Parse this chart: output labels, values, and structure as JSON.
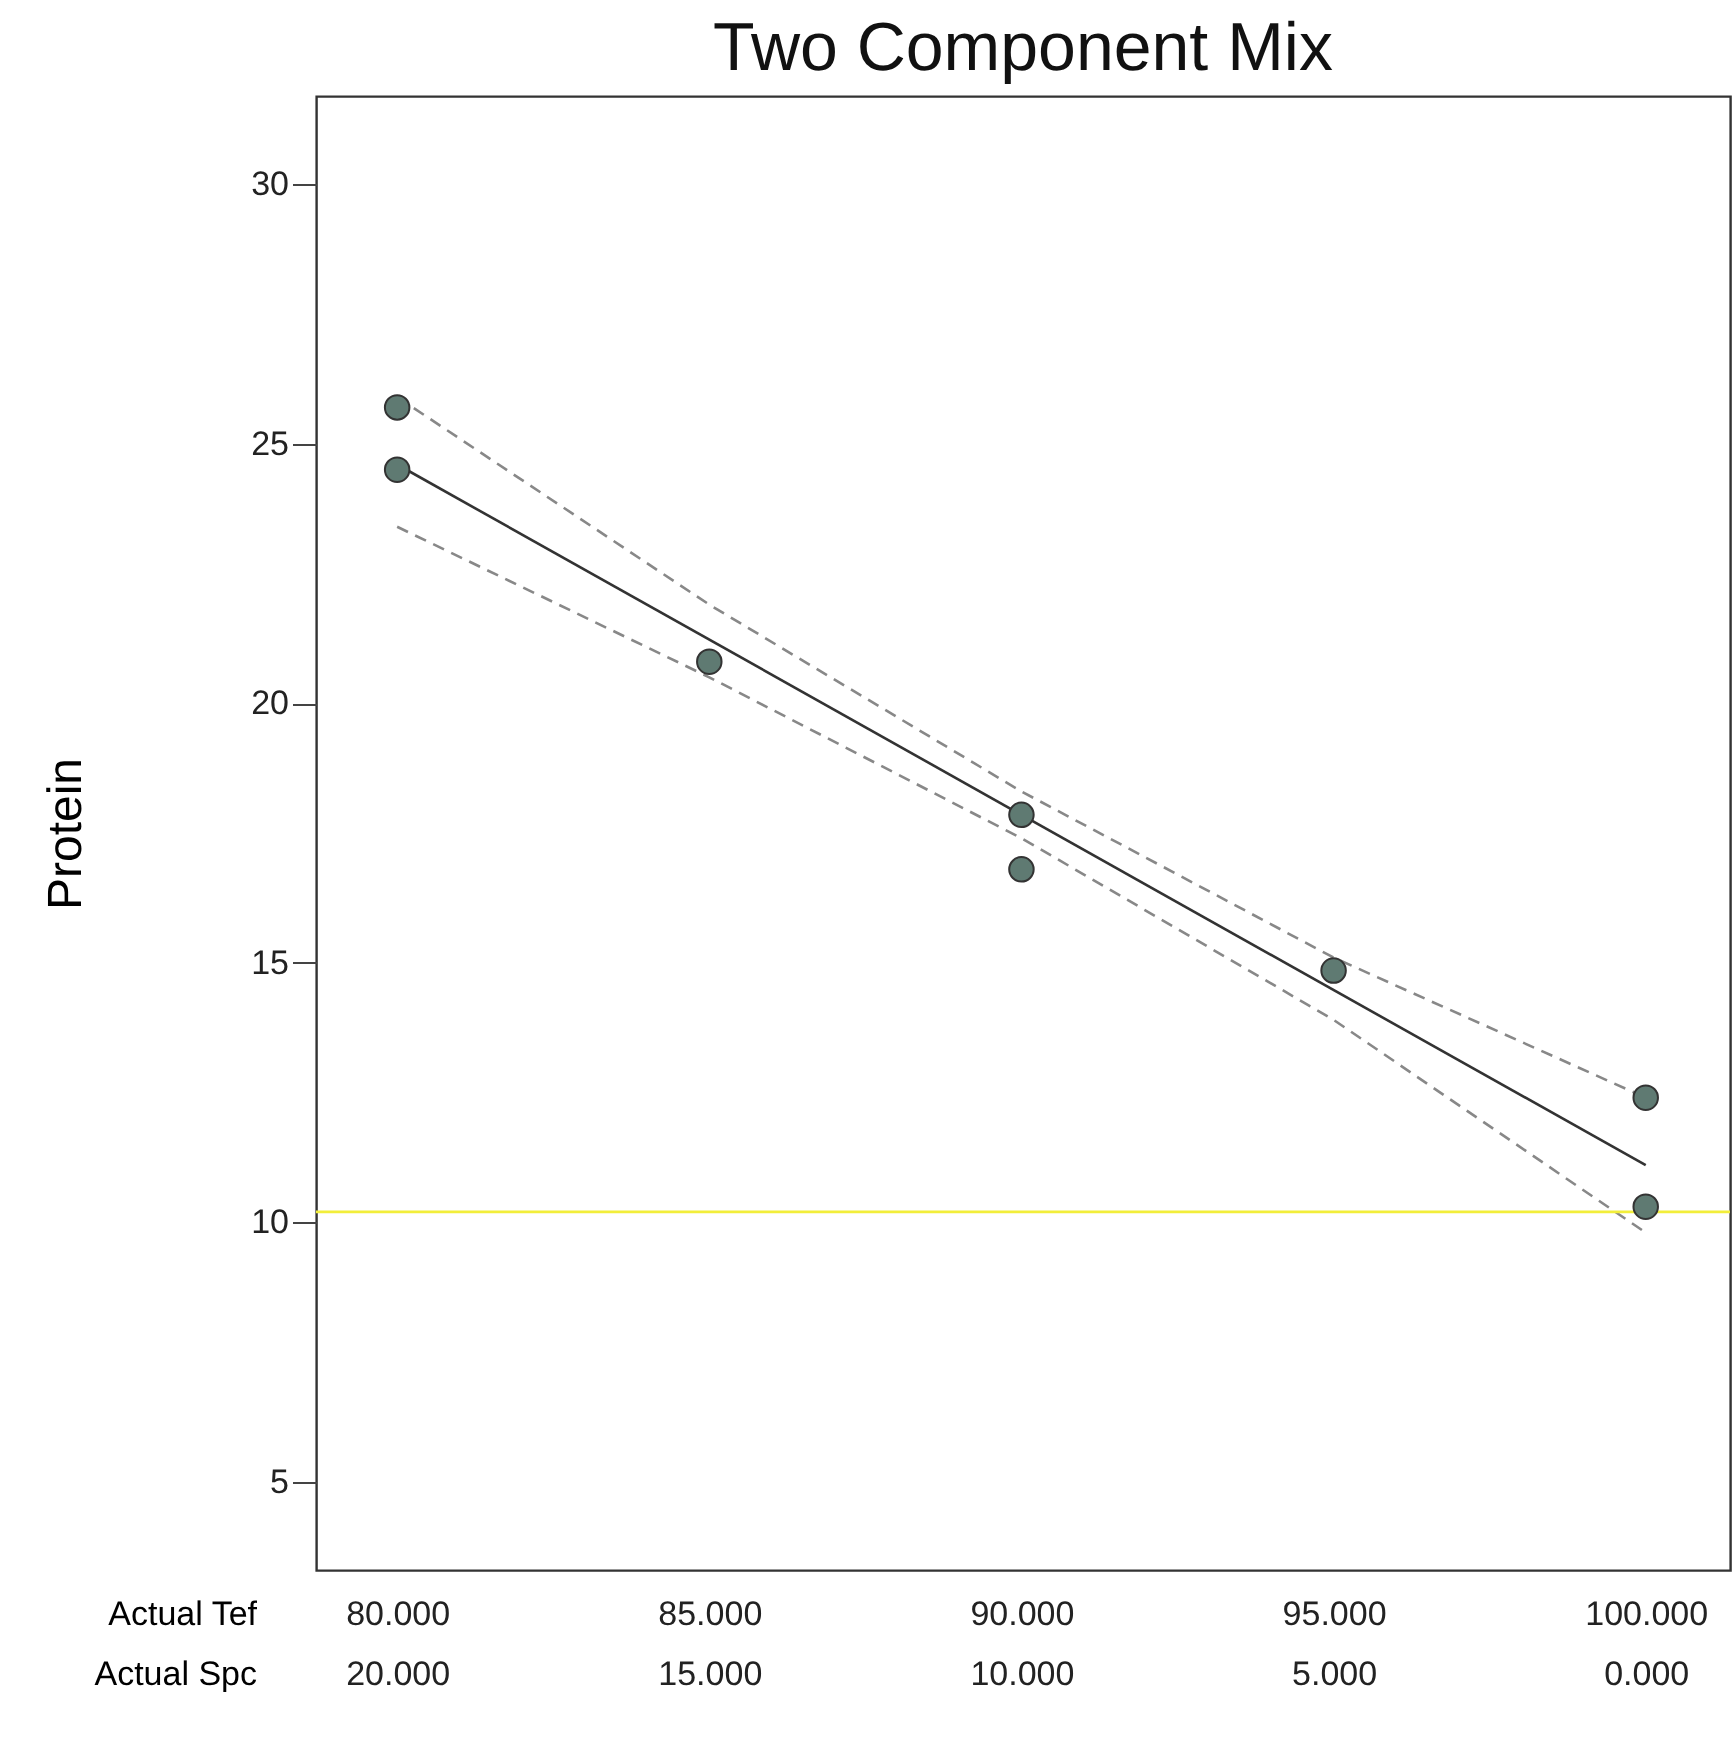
{
  "chart_data": {
    "type": "scatter",
    "title": "Two Component Mix",
    "ylabel": "Protein",
    "xlabel": "Actual Tef",
    "x2label": "Actual Spc",
    "xlim": [
      78.7,
      101.35
    ],
    "xticks": [
      {
        "value": 80,
        "label": "80.000"
      },
      {
        "value": 85,
        "label": "85.000"
      },
      {
        "value": 90,
        "label": "90.000"
      },
      {
        "value": 95,
        "label": "95.000"
      },
      {
        "value": 100,
        "label": "100.000"
      }
    ],
    "x2lim": [
      21.3,
      -1.35
    ],
    "x2ticks": [
      {
        "value": 20,
        "label": "20.000"
      },
      {
        "value": 15,
        "label": "15.000"
      },
      {
        "value": 10,
        "label": "10.000"
      },
      {
        "value": 5,
        "label": "5.000"
      },
      {
        "value": 0,
        "label": "0.000"
      }
    ],
    "ylim": [
      3.3,
      31.7
    ],
    "yticks": [
      5,
      10,
      15,
      20,
      25,
      30
    ],
    "grid": false,
    "series": [
      {
        "color": "#5f7a72",
        "marker": "circle",
        "x": [
          80,
          80,
          85,
          90,
          90,
          95,
          100,
          100
        ],
        "values": [
          25.7,
          24.5,
          20.8,
          17.85,
          16.8,
          14.85,
          12.4,
          10.3
        ]
      },
      {
        "type": "line",
        "color": "#333333",
        "line_style": "solid",
        "x": [
          80,
          100
        ],
        "values": [
          24.6,
          11.1
        ]
      },
      {
        "type": "line",
        "color": "#888888",
        "line_style": "dashed",
        "x": [
          80,
          85,
          90,
          95,
          100
        ],
        "values": [
          25.9,
          21.9,
          18.3,
          15.1,
          12.4
        ]
      },
      {
        "type": "line",
        "color": "#888888",
        "line_style": "dashed",
        "x": [
          80,
          85,
          90,
          95,
          100
        ],
        "values": [
          23.4,
          20.5,
          17.4,
          13.9,
          9.8
        ]
      }
    ],
    "ref_lines": [
      {
        "axis": "y",
        "value": 10.2,
        "color": "#f2ee3a"
      }
    ]
  }
}
